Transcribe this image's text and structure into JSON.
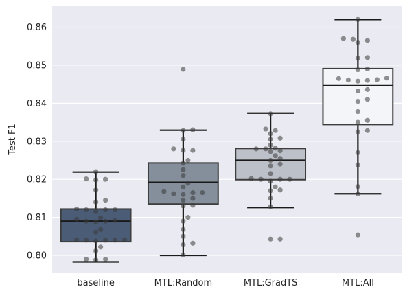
{
  "chart_data": {
    "type": "box",
    "title": "",
    "xlabel": "",
    "ylabel": "Test F1",
    "ylim": [
      0.7955,
      0.8655
    ],
    "yticks": [
      0.8,
      0.81,
      0.82,
      0.83,
      0.84,
      0.85,
      0.86
    ],
    "ytick_labels": [
      "0.80",
      "0.81",
      "0.82",
      "0.83",
      "0.84",
      "0.85",
      "0.86"
    ],
    "grid": true,
    "background": "#eaeaf2",
    "categories": [
      "baseline",
      "MTL:Random",
      "MTL:GradTS",
      "MTL:All"
    ],
    "box_colors": [
      "#4a5c76",
      "#848f9b",
      "#bcc1c9",
      "#f4f5f8"
    ],
    "point_color": "#3a3a3a",
    "series": [
      {
        "name": "baseline",
        "box": {
          "whisker_low": 0.7983,
          "q1": 0.8036,
          "median": 0.809,
          "q3": 0.8122,
          "whisker_high": 0.8219
        },
        "outliers": [],
        "points": [
          0.822,
          0.8201,
          0.8198,
          0.82,
          0.8172,
          0.8145,
          0.814,
          0.8122,
          0.812,
          0.812,
          0.812,
          0.8115,
          0.8099,
          0.8095,
          0.8092,
          0.809,
          0.809,
          0.8088,
          0.8068,
          0.8061,
          0.8041,
          0.8041,
          0.804,
          0.804,
          0.804,
          0.8038,
          0.8022,
          0.8012,
          0.799,
          0.799,
          0.7988
        ]
      },
      {
        "name": "MTL:Random",
        "box": {
          "whisker_low": 0.8,
          "q1": 0.8135,
          "median": 0.8192,
          "q3": 0.8243,
          "whisker_high": 0.8329
        },
        "outliers": [
          0.8489
        ],
        "points": [
          0.8489,
          0.833,
          0.8328,
          0.8305,
          0.828,
          0.8276,
          0.8276,
          0.825,
          0.8242,
          0.8225,
          0.821,
          0.819,
          0.818,
          0.8168,
          0.8165,
          0.8165,
          0.8162,
          0.816,
          0.815,
          0.8145,
          0.8132,
          0.813,
          0.81,
          0.809,
          0.8068,
          0.805,
          0.8032,
          0.8028,
          0.8001
        ]
      },
      {
        "name": "MTL:GradTS",
        "box": {
          "whisker_low": 0.8126,
          "q1": 0.8199,
          "median": 0.825,
          "q3": 0.8281,
          "whisker_high": 0.8374
        },
        "outliers": [
          0.8043,
          0.8043
        ],
        "points": [
          0.8372,
          0.8332,
          0.8328,
          0.832,
          0.8308,
          0.8305,
          0.829,
          0.8282,
          0.828,
          0.828,
          0.8275,
          0.8273,
          0.8262,
          0.8255,
          0.825,
          0.824,
          0.8235,
          0.8215,
          0.8202,
          0.82,
          0.82,
          0.82,
          0.8195,
          0.818,
          0.8172,
          0.817,
          0.815,
          0.8128,
          0.8043,
          0.8043
        ]
      },
      {
        "name": "MTL:All",
        "box": {
          "whisker_low": 0.8162,
          "q1": 0.8344,
          "median": 0.8446,
          "q3": 0.8491,
          "whisker_high": 0.862
        },
        "outliers": [
          0.8054
        ],
        "points": [
          0.862,
          0.857,
          0.8568,
          0.8565,
          0.856,
          0.852,
          0.8518,
          0.849,
          0.8488,
          0.8466,
          0.8465,
          0.8462,
          0.8461,
          0.846,
          0.8458,
          0.8436,
          0.8432,
          0.841,
          0.8405,
          0.8378,
          0.8355,
          0.835,
          0.8328,
          0.8325,
          0.827,
          0.8238,
          0.8181,
          0.8162,
          0.8054
        ]
      }
    ]
  }
}
